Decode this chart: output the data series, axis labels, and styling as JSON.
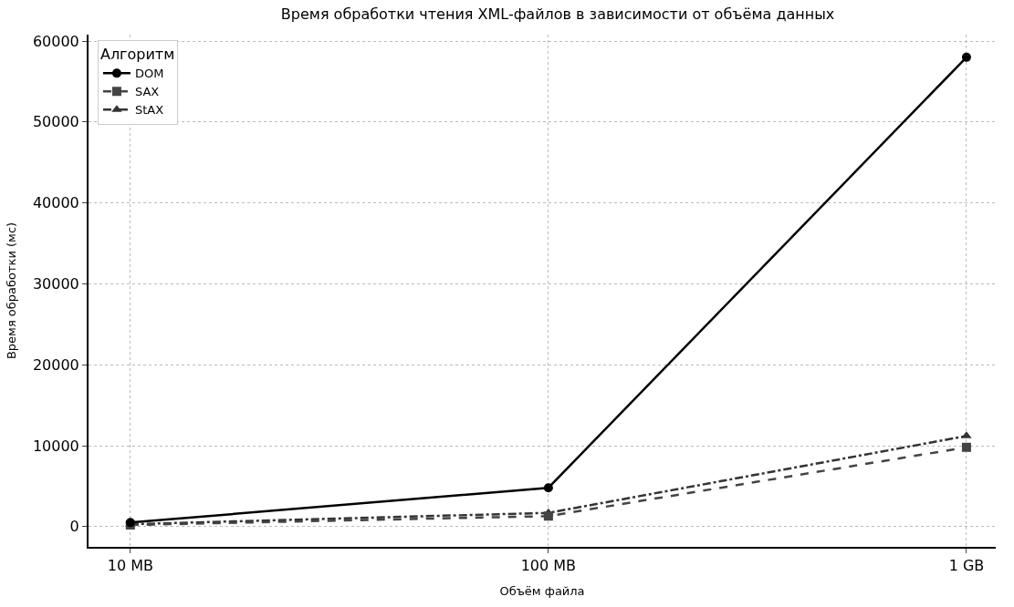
{
  "chart_data": {
    "type": "line",
    "title": "Время обработки чтения XML-файлов в зависимости от объёма данных",
    "xlabel": "Объём файла",
    "ylabel": "Время обработки (мс)",
    "legend_title": "Алгоритм",
    "categories": [
      "10 MB",
      "100 MB",
      "1 GB"
    ],
    "series": [
      {
        "name": "DOM",
        "color": "#000000",
        "values": [
          500,
          4800,
          58000
        ],
        "marker": "circle",
        "line_style": "solid"
      },
      {
        "name": "SAX",
        "color": "#444444",
        "values": [
          200,
          1300,
          9800
        ],
        "marker": "square",
        "line_style": "dashed"
      },
      {
        "name": "StAX",
        "color": "#333333",
        "values": [
          300,
          1700,
          11200
        ],
        "marker": "triangle",
        "line_style": "dashdot"
      }
    ],
    "ylim": [
      -2500,
      60800
    ],
    "yticks": [
      0,
      10000,
      20000,
      30000,
      40000,
      50000,
      60000
    ],
    "grid": true,
    "legend": "top left"
  }
}
